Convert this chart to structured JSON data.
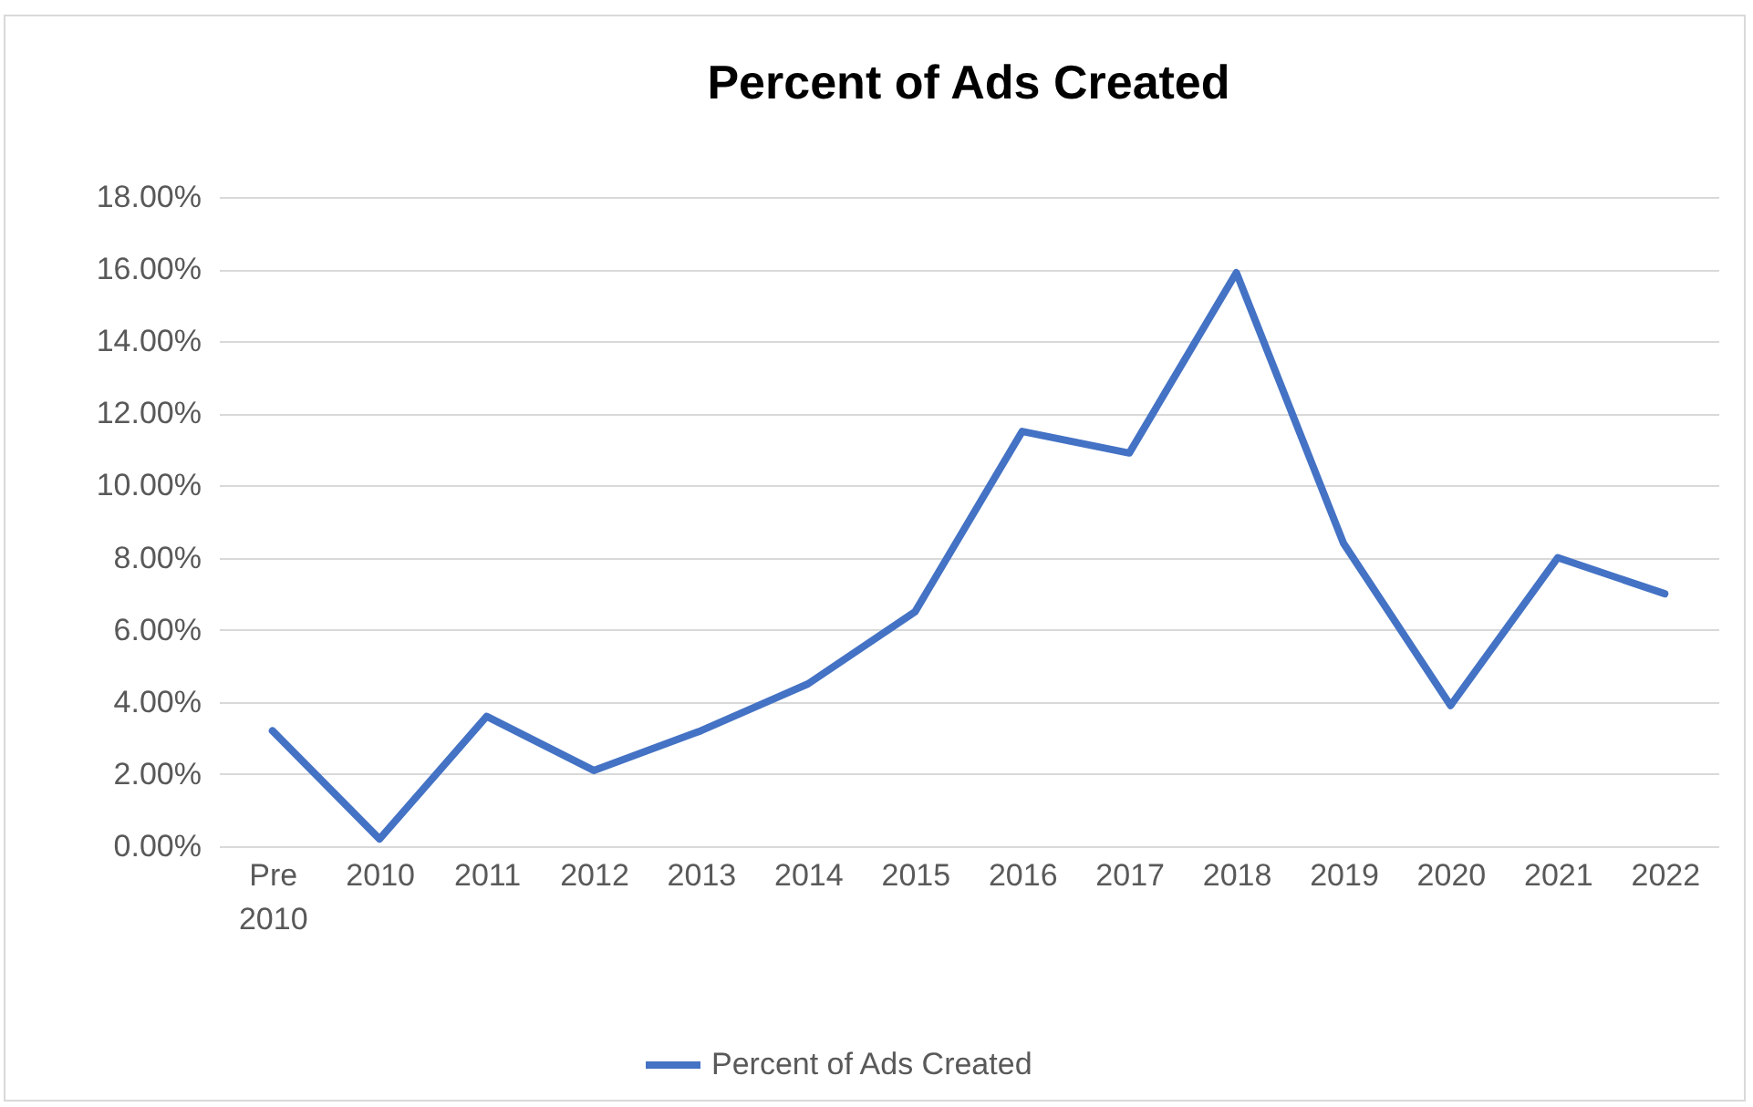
{
  "chart_data": {
    "type": "line",
    "title": "Percent of Ads Created",
    "categories": [
      "Pre 2010",
      "2010",
      "2011",
      "2012",
      "2013",
      "2014",
      "2015",
      "2016",
      "2017",
      "2018",
      "2019",
      "2020",
      "2021",
      "2022"
    ],
    "series": [
      {
        "name": "Percent of Ads Created",
        "color": "#4472c4",
        "values": [
          3.2,
          0.2,
          3.6,
          2.1,
          3.2,
          4.5,
          6.5,
          11.5,
          10.9,
          15.9,
          8.4,
          3.9,
          8.0,
          7.0
        ]
      }
    ],
    "ylim": [
      0,
      18
    ],
    "yticks": [
      {
        "value": 0,
        "label": "0.00%"
      },
      {
        "value": 2,
        "label": "2.00%"
      },
      {
        "value": 4,
        "label": "4.00%"
      },
      {
        "value": 6,
        "label": "6.00%"
      },
      {
        "value": 8,
        "label": "8.00%"
      },
      {
        "value": 10,
        "label": "10.00%"
      },
      {
        "value": 12,
        "label": "12.00%"
      },
      {
        "value": 14,
        "label": "14.00%"
      },
      {
        "value": 16,
        "label": "16.00%"
      },
      {
        "value": 18,
        "label": "18.00%"
      }
    ],
    "grid": "y",
    "legend": "bottom",
    "marker": "none",
    "line_style": "solid"
  }
}
